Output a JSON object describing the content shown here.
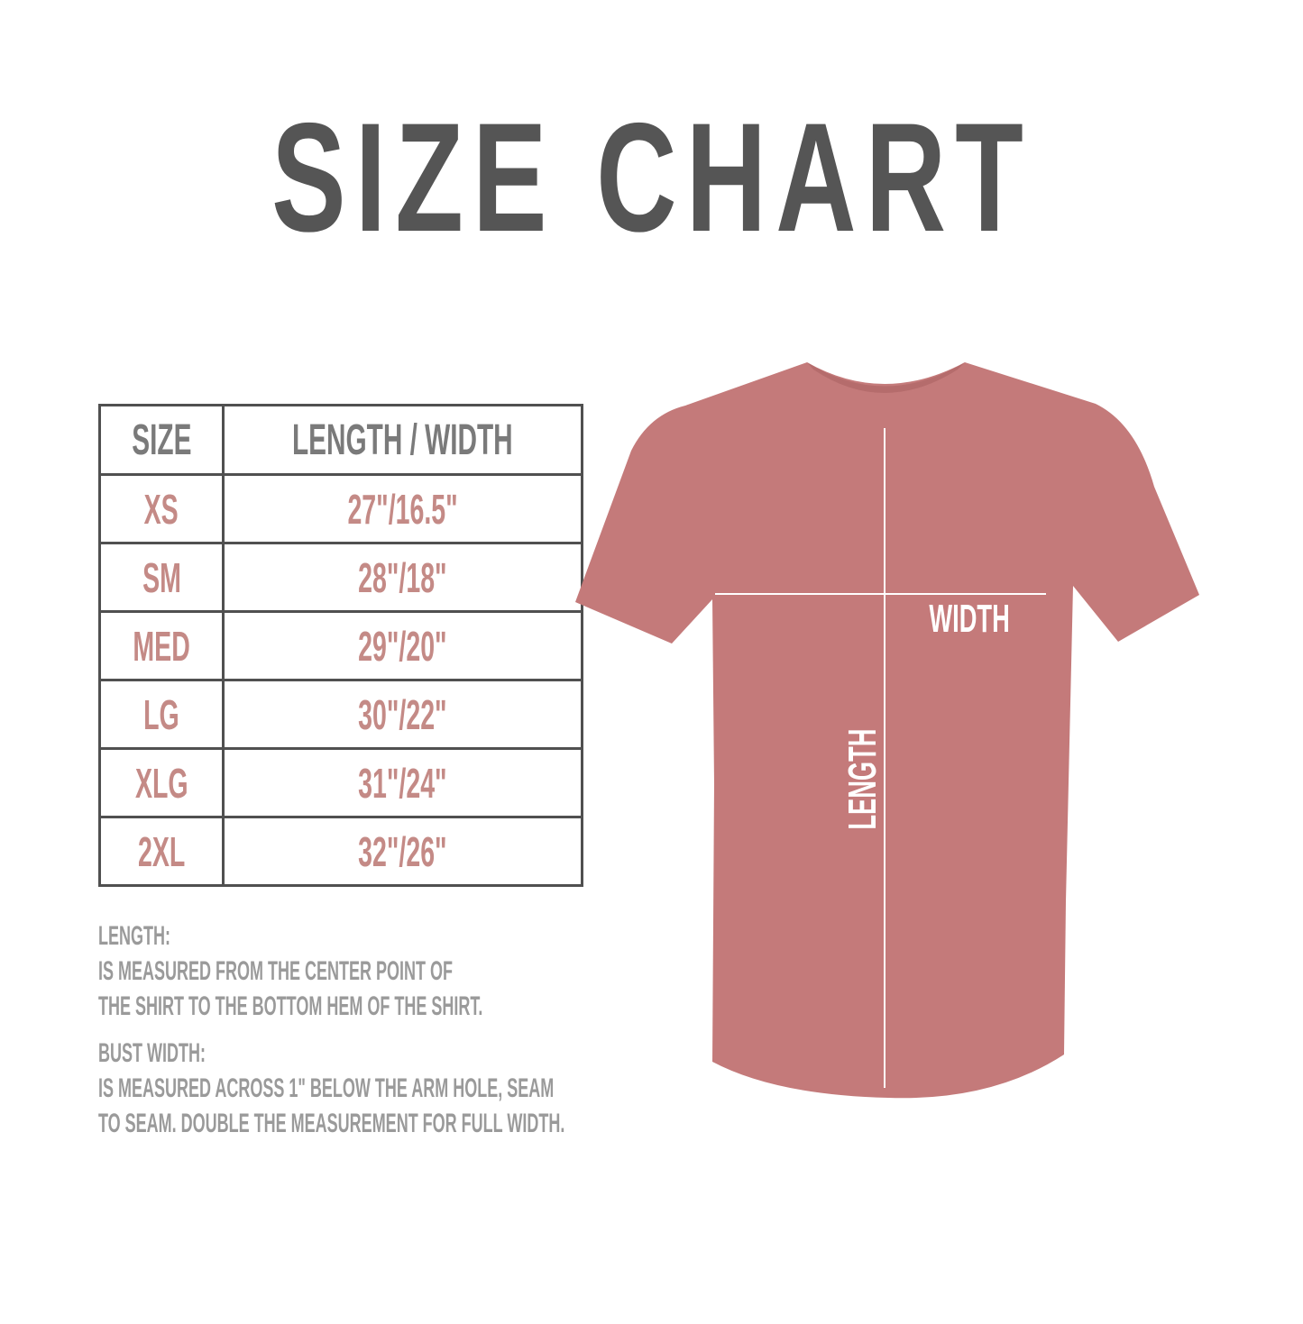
{
  "title": "SIZE CHART",
  "table": {
    "headers": [
      "SIZE",
      "LENGTH / WIDTH"
    ],
    "rows": [
      {
        "size": "XS",
        "measure": "27\"/16.5\""
      },
      {
        "size": "SM",
        "measure": "28\"/18\""
      },
      {
        "size": "MED",
        "measure": "29\"/20\""
      },
      {
        "size": "LG",
        "measure": "30\"/22\""
      },
      {
        "size": "XLG",
        "measure": "31\"/24\""
      },
      {
        "size": "2XL",
        "measure": "32\"/26\""
      }
    ]
  },
  "notes": {
    "length_heading": "LENGTH:",
    "length_line1": "IS MEASURED FROM THE CENTER POINT OF",
    "length_line2": "THE SHIRT TO THE BOTTOM HEM OF THE SHIRT.",
    "width_heading": "BUST WIDTH:",
    "width_line1": "IS MEASURED ACROSS  1\" BELOW THE ARM HOLE, SEAM",
    "width_line2": "TO SEAM. DOUBLE THE MEASUREMENT FOR FULL WIDTH."
  },
  "diagram": {
    "width_label": "WIDTH",
    "length_label": "LENGTH",
    "shirt_color": "#c47a7a"
  },
  "colors": {
    "title": "#555555",
    "header_text": "#7a7a7a",
    "value_text": "#c48a86",
    "grid": "#505050",
    "notes": "#9a9a9a"
  }
}
